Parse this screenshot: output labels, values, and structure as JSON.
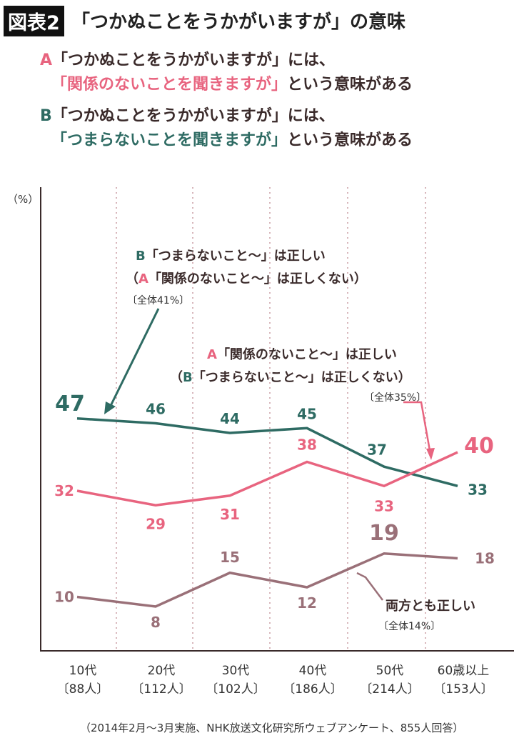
{
  "header": {
    "figure_label": "図表2",
    "title": "「つかぬことをうかがいますが」の意味",
    "a_letter": "A",
    "a_line1": "「つかぬことをうかがいますが」には、",
    "a_line2_colored": "「関係のないことを聞きますが」",
    "a_line2_rest": "という意味がある",
    "b_letter": "B",
    "b_line1": "「つかぬことをうかがいますが」には、",
    "b_line2_colored": "「つまらないことを聞きますが」",
    "b_line2_rest": "という意味がある"
  },
  "annotations": {
    "b": {
      "letter": "B",
      "line1": "「つまらないこと〜」は正しい",
      "line2_open": "（",
      "line2_letter": "A",
      "line2": "「関係のないこと〜」は正しくない）",
      "total": "〔全体41%〕"
    },
    "a": {
      "letter": "A",
      "line1": "「関係のないこと〜」は正しい",
      "line2_open": "（",
      "line2_letter": "B",
      "line2": "「つまらないこと〜」は正しくない）",
      "total": "〔全体35%〕"
    },
    "both": {
      "line1": "両方とも正しい",
      "total": "〔全体14%〕"
    }
  },
  "footnote": "（2014年2月〜3月実施、NHK放送文化研究所ウェブアンケート、855人回答）",
  "colors": {
    "A": "#e8647f",
    "B": "#2e6b63",
    "both": "#9a7078"
  },
  "chart_data": {
    "type": "line",
    "ylabel": "（%）",
    "categories": [
      "10代",
      "20代",
      "30代",
      "40代",
      "50代",
      "60歳以上"
    ],
    "category_counts": [
      "〔88人〕",
      "〔112人〕",
      "〔102人〕",
      "〔186人〕",
      "〔214人〕",
      "〔153人〕"
    ],
    "series": [
      {
        "key": "B",
        "values": [
          47,
          46,
          44,
          45,
          37,
          33
        ]
      },
      {
        "key": "A",
        "values": [
          32,
          29,
          31,
          38,
          33,
          40
        ]
      },
      {
        "key": "both",
        "values": [
          10,
          8,
          15,
          12,
          19,
          18
        ]
      }
    ],
    "ylim": [
      0,
      50
    ],
    "grid": "vertical dotted"
  }
}
